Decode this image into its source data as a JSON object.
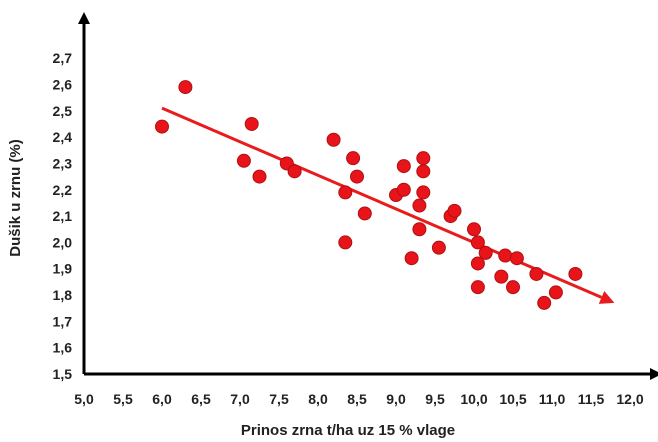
{
  "chart_data": {
    "type": "scatter",
    "title": "",
    "xlabel": "Prinos zrna t/ha uz 15 % vlage",
    "ylabel": "Dušik u zrnu (%)",
    "xlim": [
      5.0,
      12.0
    ],
    "ylim": [
      1.5,
      2.75
    ],
    "x_ticks": [
      "5,0",
      "5,5",
      "6,0",
      "6,5",
      "7,0",
      "7,5",
      "8,0",
      "8,5",
      "9,0",
      "9,5",
      "10,0",
      "10,5",
      "11,0",
      "11,5",
      "12,0"
    ],
    "y_ticks": [
      "1,5",
      "1,6",
      "1,7",
      "1,8",
      "1,9",
      "2,0",
      "2,1",
      "2,2",
      "2,3",
      "2,4",
      "2,5",
      "2,6",
      "2,7"
    ],
    "grid": false,
    "marker_color": "#e8141a",
    "marker_edge": "#b01014",
    "trend_color": "#e81c1c",
    "axis_color": "#000000",
    "points": [
      {
        "x": 6.0,
        "y": 2.44
      },
      {
        "x": 6.3,
        "y": 2.59
      },
      {
        "x": 7.05,
        "y": 2.31
      },
      {
        "x": 7.15,
        "y": 2.45
      },
      {
        "x": 7.25,
        "y": 2.25
      },
      {
        "x": 7.6,
        "y": 2.3
      },
      {
        "x": 7.7,
        "y": 2.27
      },
      {
        "x": 8.2,
        "y": 2.39
      },
      {
        "x": 8.35,
        "y": 2.19
      },
      {
        "x": 8.35,
        "y": 2.0
      },
      {
        "x": 8.45,
        "y": 2.32
      },
      {
        "x": 8.5,
        "y": 2.25
      },
      {
        "x": 8.6,
        "y": 2.11
      },
      {
        "x": 9.0,
        "y": 2.18
      },
      {
        "x": 9.1,
        "y": 2.29
      },
      {
        "x": 9.1,
        "y": 2.2
      },
      {
        "x": 9.2,
        "y": 1.94
      },
      {
        "x": 9.3,
        "y": 2.14
      },
      {
        "x": 9.3,
        "y": 2.05
      },
      {
        "x": 9.35,
        "y": 2.32
      },
      {
        "x": 9.35,
        "y": 2.27
      },
      {
        "x": 9.35,
        "y": 2.19
      },
      {
        "x": 9.55,
        "y": 1.98
      },
      {
        "x": 9.7,
        "y": 2.1
      },
      {
        "x": 9.75,
        "y": 2.12
      },
      {
        "x": 10.0,
        "y": 2.05
      },
      {
        "x": 10.05,
        "y": 2.0
      },
      {
        "x": 10.05,
        "y": 1.92
      },
      {
        "x": 10.05,
        "y": 1.83
      },
      {
        "x": 10.15,
        "y": 1.96
      },
      {
        "x": 10.35,
        "y": 1.87
      },
      {
        "x": 10.4,
        "y": 1.95
      },
      {
        "x": 10.5,
        "y": 1.83
      },
      {
        "x": 10.55,
        "y": 1.94
      },
      {
        "x": 10.8,
        "y": 1.88
      },
      {
        "x": 10.9,
        "y": 1.77
      },
      {
        "x": 11.05,
        "y": 1.81
      },
      {
        "x": 11.3,
        "y": 1.88
      }
    ],
    "trend_line": {
      "x": [
        6.0,
        11.8
      ],
      "y": [
        2.51,
        1.77
      ]
    }
  }
}
